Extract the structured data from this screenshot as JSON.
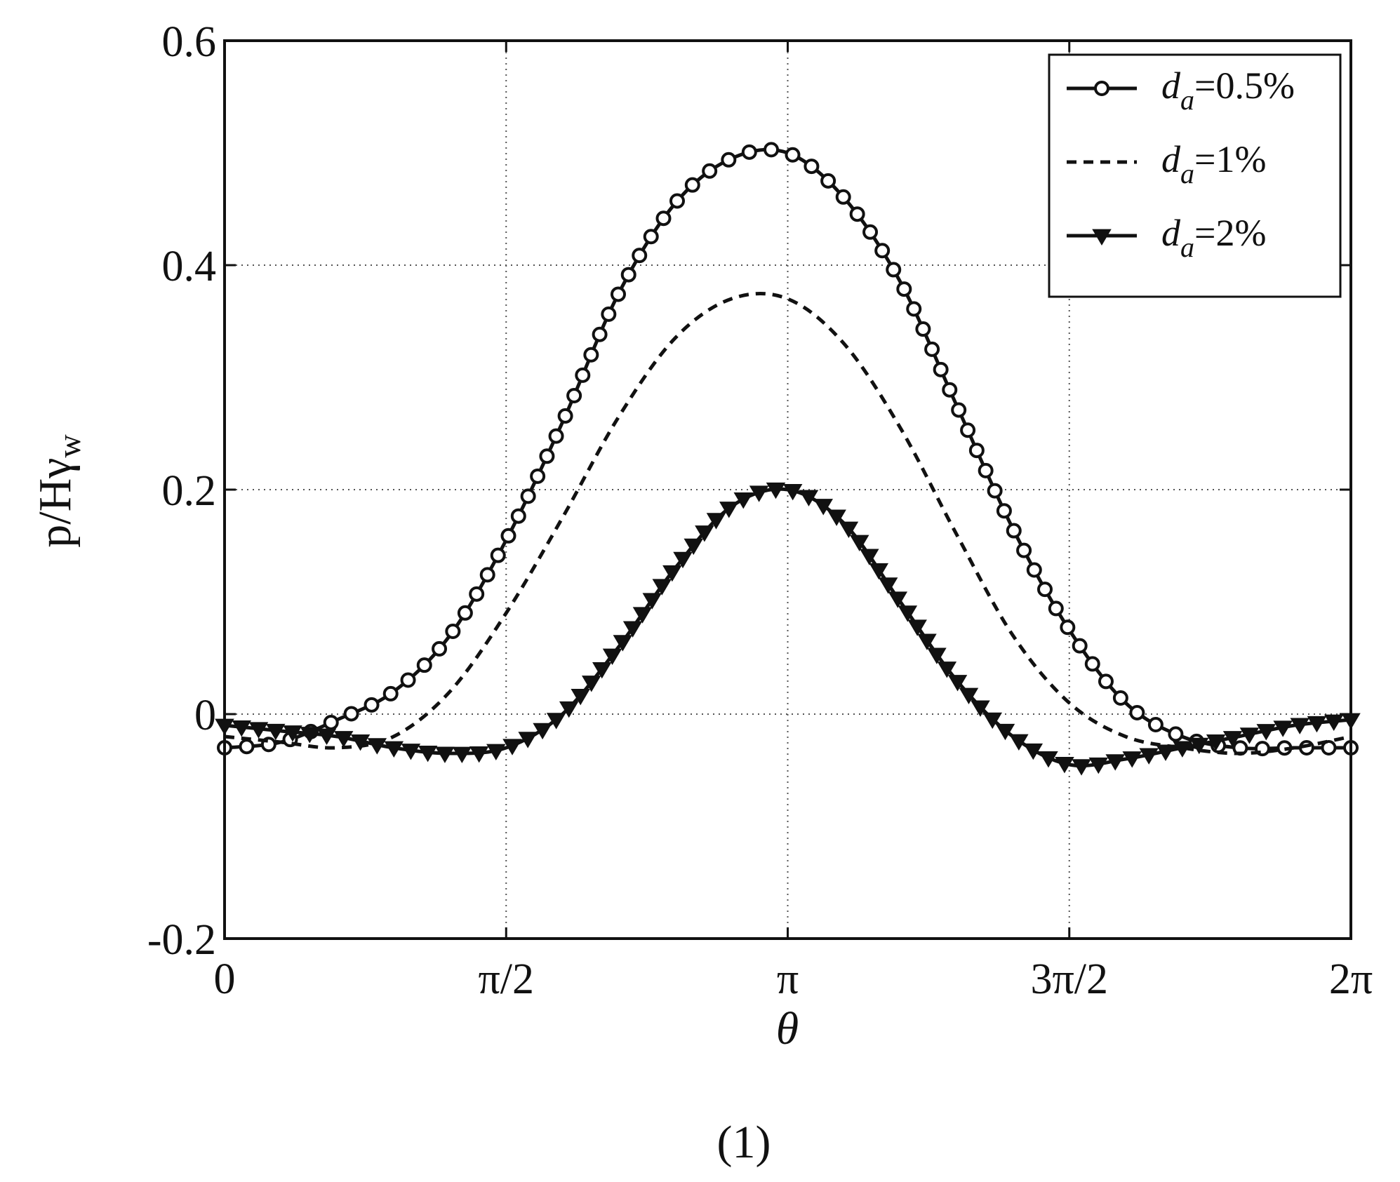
{
  "chart_data": {
    "type": "line",
    "xlabel": "θ",
    "ylabel": {
      "base": "p/Hγ",
      "sub": "w"
    },
    "caption": "(1)",
    "xlim": [
      0,
      6.2832
    ],
    "ylim": [
      -0.2,
      0.6
    ],
    "grid": true,
    "legend_position": "top-right",
    "x_ticks": [
      {
        "value": 0,
        "label": "0"
      },
      {
        "value": 1.5708,
        "label": "π/2"
      },
      {
        "value": 3.1416,
        "label": "π"
      },
      {
        "value": 4.7124,
        "label": "3π/2"
      },
      {
        "value": 6.2832,
        "label": "2π"
      }
    ],
    "y_ticks": [
      {
        "value": -0.2,
        "label": "-0.2"
      },
      {
        "value": 0,
        "label": "0"
      },
      {
        "value": 0.2,
        "label": "0.2"
      },
      {
        "value": 0.4,
        "label": "0.4"
      },
      {
        "value": 0.6,
        "label": "0.6"
      }
    ],
    "x": [
      0.0,
      0.3142,
      0.6283,
      0.9425,
      1.2566,
      1.5708,
      1.885,
      2.1991,
      2.5133,
      2.8274,
      3.1416,
      3.4558,
      3.7699,
      4.0841,
      4.3982,
      4.7124,
      5.0265,
      5.3407,
      5.6549,
      5.969,
      6.2832
    ],
    "series": [
      {
        "legend_main": "d",
        "legend_sub": "a",
        "legend_value": "=0.5%",
        "style": "solid-circle",
        "values": [
          -0.03,
          -0.025,
          -0.005,
          0.02,
          0.07,
          0.155,
          0.26,
          0.375,
          0.455,
          0.495,
          0.5,
          0.46,
          0.385,
          0.275,
          0.165,
          0.075,
          0.01,
          -0.02,
          -0.03,
          -0.03,
          -0.03
        ]
      },
      {
        "legend_main": "d",
        "legend_sub": "a",
        "legend_value": "=1%",
        "style": "dashed",
        "values": [
          -0.02,
          -0.025,
          -0.03,
          -0.02,
          0.02,
          0.09,
          0.175,
          0.265,
          0.335,
          0.37,
          0.37,
          0.33,
          0.255,
          0.16,
          0.07,
          0.01,
          -0.02,
          -0.03,
          -0.035,
          -0.03,
          -0.02
        ]
      },
      {
        "legend_main": "d",
        "legend_sub": "a",
        "legend_value": "=2%",
        "style": "solid-triangle",
        "values": [
          -0.01,
          -0.015,
          -0.02,
          -0.03,
          -0.035,
          -0.03,
          0.0,
          0.06,
          0.13,
          0.185,
          0.2,
          0.17,
          0.1,
          0.03,
          -0.02,
          -0.045,
          -0.04,
          -0.03,
          -0.02,
          -0.01,
          -0.005
        ]
      }
    ]
  }
}
